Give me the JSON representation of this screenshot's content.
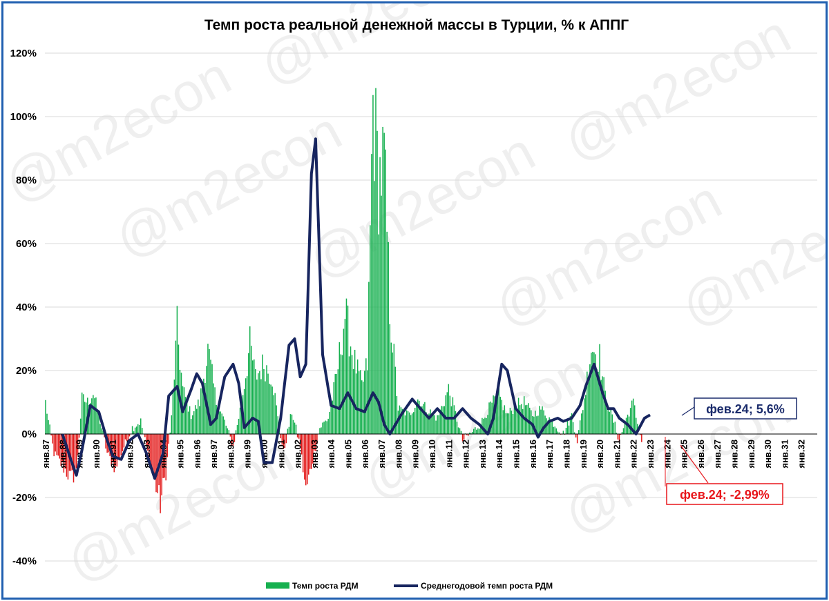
{
  "watermark": "@m2econ",
  "colors": {
    "bar_positive": "#16b04f",
    "bar_negative": "#e31b1b",
    "line": "#17255f",
    "grid": "#d9d9d9",
    "frame": "#1f5fb0",
    "annotation_blue": "#1a2b6b",
    "annotation_red": "#e8161b"
  },
  "chart_data": {
    "type": "bar",
    "title": "Темп роста реальной денежной массы в Турции, % к АППГ",
    "ylim": [
      -40,
      120
    ],
    "yticks": [
      "-40%",
      "-20%",
      "0%",
      "20%",
      "40%",
      "60%",
      "80%",
      "100%",
      "120%"
    ],
    "x_ticks": [
      "янв.87",
      "янв.88",
      "янв.89",
      "янв.90",
      "янв.91",
      "янв.92",
      "янв.93",
      "янв.94",
      "янв.95",
      "янв.96",
      "янв.97",
      "янв.98",
      "янв.99",
      "янв.00",
      "янв.01",
      "янв.02",
      "янв.03",
      "янв.04",
      "янв.05",
      "янв.06",
      "янв.07",
      "янв.08",
      "янв.09",
      "янв.10",
      "янв.11",
      "янв.12",
      "янв.13",
      "янв.14",
      "янв.15",
      "янв.16",
      "янв.17",
      "янв.18",
      "янв.19",
      "янв.20",
      "янв.21",
      "янв.22",
      "янв.23",
      "янв.24",
      "янв.25",
      "янв.26",
      "янв.27",
      "янв.28",
      "янв.29",
      "янв.30",
      "янв.31",
      "янв.32"
    ],
    "grid": true,
    "legend_position": "bottom",
    "series": [
      {
        "name": "Темп роста РДМ",
        "kind": "bar",
        "monthly_anchors": [
          [
            0,
            10
          ],
          [
            2,
            4
          ],
          [
            6,
            -6
          ],
          [
            12,
            -10
          ],
          [
            18,
            -14
          ],
          [
            22,
            -12
          ],
          [
            26,
            11
          ],
          [
            30,
            10
          ],
          [
            34,
            13
          ],
          [
            38,
            6
          ],
          [
            44,
            -6
          ],
          [
            50,
            -11
          ],
          [
            56,
            -4
          ],
          [
            62,
            2
          ],
          [
            68,
            4
          ],
          [
            72,
            -4
          ],
          [
            78,
            -15
          ],
          [
            82,
            -22
          ],
          [
            86,
            -12
          ],
          [
            90,
            5
          ],
          [
            94,
            33
          ],
          [
            98,
            14
          ],
          [
            104,
            6
          ],
          [
            110,
            10
          ],
          [
            116,
            26
          ],
          [
            122,
            10
          ],
          [
            128,
            4
          ],
          [
            134,
            -4
          ],
          [
            140,
            10
          ],
          [
            146,
            28
          ],
          [
            150,
            18
          ],
          [
            156,
            22
          ],
          [
            162,
            18
          ],
          [
            166,
            5
          ],
          [
            170,
            -6
          ],
          [
            176,
            7
          ],
          [
            182,
            -4
          ],
          [
            186,
            -18
          ],
          [
            190,
            -10
          ],
          [
            196,
            2
          ],
          [
            202,
            5
          ],
          [
            208,
            18
          ],
          [
            214,
            38
          ],
          [
            220,
            24
          ],
          [
            226,
            15
          ],
          [
            230,
            22
          ],
          [
            234,
            104
          ],
          [
            238,
            80
          ],
          [
            242,
            86
          ],
          [
            246,
            40
          ],
          [
            252,
            8
          ],
          [
            260,
            6
          ],
          [
            266,
            11
          ],
          [
            272,
            8
          ],
          [
            280,
            5
          ],
          [
            288,
            14
          ],
          [
            292,
            8
          ],
          [
            298,
            -2
          ],
          [
            306,
            1
          ],
          [
            312,
            4
          ],
          [
            318,
            9
          ],
          [
            324,
            12
          ],
          [
            330,
            6
          ],
          [
            336,
            9
          ],
          [
            342,
            10
          ],
          [
            348,
            6
          ],
          [
            354,
            8
          ],
          [
            360,
            5
          ],
          [
            366,
            2
          ],
          [
            370,
            0
          ],
          [
            376,
            6
          ],
          [
            380,
            -2
          ],
          [
            386,
            14
          ],
          [
            390,
            28
          ],
          [
            396,
            24
          ],
          [
            400,
            12
          ],
          [
            406,
            4
          ],
          [
            410,
            -2
          ],
          [
            416,
            6
          ],
          [
            420,
            10
          ],
          [
            424,
            1
          ],
          [
            426,
            -2
          ]
        ]
      },
      {
        "name": "Среднегодовой темп роста РДМ",
        "kind": "line",
        "monthly_anchors": [
          [
            12,
            0
          ],
          [
            18,
            -8
          ],
          [
            22,
            -13
          ],
          [
            26,
            -5
          ],
          [
            32,
            9
          ],
          [
            38,
            7
          ],
          [
            44,
            -2
          ],
          [
            48,
            -7
          ],
          [
            54,
            -8
          ],
          [
            60,
            -2
          ],
          [
            66,
            0
          ],
          [
            72,
            -6
          ],
          [
            78,
            -14
          ],
          [
            84,
            -6
          ],
          [
            88,
            12
          ],
          [
            94,
            15
          ],
          [
            98,
            7
          ],
          [
            104,
            14
          ],
          [
            108,
            19
          ],
          [
            112,
            16
          ],
          [
            118,
            3
          ],
          [
            122,
            5
          ],
          [
            128,
            18
          ],
          [
            134,
            22
          ],
          [
            138,
            16
          ],
          [
            142,
            2
          ],
          [
            148,
            5
          ],
          [
            152,
            4
          ],
          [
            156,
            -9
          ],
          [
            162,
            -9
          ],
          [
            168,
            5
          ],
          [
            174,
            28
          ],
          [
            178,
            30
          ],
          [
            182,
            18
          ],
          [
            186,
            22
          ],
          [
            190,
            82
          ],
          [
            193,
            93
          ],
          [
            198,
            25
          ],
          [
            204,
            9
          ],
          [
            210,
            8
          ],
          [
            216,
            13
          ],
          [
            222,
            8
          ],
          [
            228,
            7
          ],
          [
            234,
            13
          ],
          [
            238,
            10
          ],
          [
            242,
            3
          ],
          [
            246,
            0
          ],
          [
            254,
            6
          ],
          [
            262,
            11
          ],
          [
            268,
            8
          ],
          [
            274,
            5
          ],
          [
            280,
            8
          ],
          [
            286,
            5
          ],
          [
            292,
            5
          ],
          [
            298,
            8
          ],
          [
            304,
            5
          ],
          [
            310,
            3
          ],
          [
            316,
            0
          ],
          [
            320,
            5
          ],
          [
            326,
            22
          ],
          [
            330,
            20
          ],
          [
            336,
            8
          ],
          [
            342,
            5
          ],
          [
            348,
            3
          ],
          [
            352,
            -1
          ],
          [
            356,
            2
          ],
          [
            360,
            4
          ],
          [
            366,
            5
          ],
          [
            370,
            4
          ],
          [
            376,
            5
          ],
          [
            382,
            9
          ],
          [
            386,
            15
          ],
          [
            392,
            22
          ],
          [
            398,
            13
          ],
          [
            402,
            8
          ],
          [
            406,
            8
          ],
          [
            410,
            5
          ],
          [
            416,
            3
          ],
          [
            422,
            0
          ],
          [
            428,
            5
          ],
          [
            432,
            6
          ]
        ]
      }
    ],
    "annotations": [
      {
        "label": "фев.24; 5,6%",
        "series": "Среднегодовой темп роста РДМ",
        "x": "фев.24",
        "y": 5.6
      },
      {
        "label": "фев.24; -2,99%",
        "series": "Темп роста РДМ",
        "x": "фев.24",
        "y": -2.99
      }
    ]
  }
}
